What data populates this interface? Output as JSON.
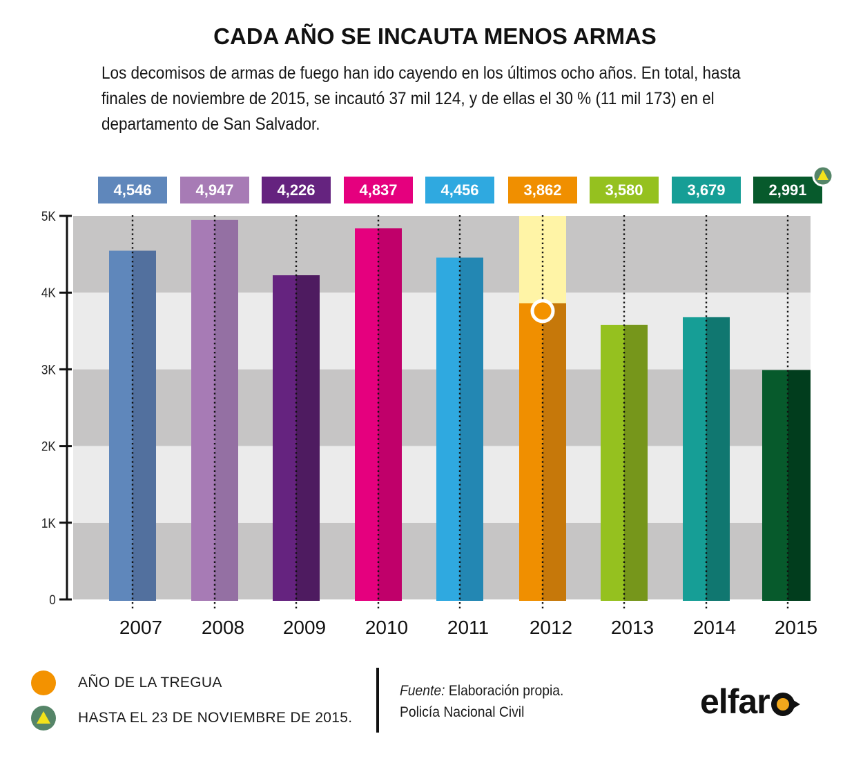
{
  "header": {
    "title": "CADA AÑO SE INCAUTA MENOS ARMAS",
    "subtitle": "Los decomisos de armas de fuego han ido cayendo en los últimos ocho años. En total, hasta finales de noviembre de 2015, se incautó 37 mil 124, y de ellas el 30 % (11 mil 173) en el departamento de San Salvador."
  },
  "chart_data": {
    "type": "bar",
    "title": "CADA AÑO SE INCAUTA MENOS ARMAS",
    "xlabel": "",
    "ylabel": "",
    "categories": [
      "2007",
      "2008",
      "2009",
      "2010",
      "2011",
      "2012",
      "2013",
      "2014",
      "2015"
    ],
    "values": [
      4546,
      4947,
      4226,
      4837,
      4456,
      3862,
      3580,
      3679,
      2991
    ],
    "value_labels": [
      "4,546",
      "4,947",
      "4,226",
      "4,837",
      "4,456",
      "3,862",
      "3,580",
      "3,679",
      "2,991"
    ],
    "colors": [
      "#5f87bb",
      "#a77bb5",
      "#65237f",
      "#e5007e",
      "#2fa9e0",
      "#f08f00",
      "#95c11f",
      "#169e96",
      "#075a2c"
    ],
    "shade_colors": [
      "#52709e",
      "#9470a3",
      "#4e1b60",
      "#c0006a",
      "#2387b3",
      "#c6780a",
      "#76961b",
      "#107770",
      "#013d1d"
    ],
    "ylim": [
      0,
      5000
    ],
    "yticks": [
      0,
      1000,
      2000,
      3000,
      4000,
      5000
    ],
    "ytick_labels": [
      "0",
      "1K",
      "2K",
      "3K",
      "4K",
      "5K"
    ],
    "grid": "alternating horizontal bands",
    "highlight": {
      "category": "2012",
      "marker": "orange-circle",
      "meaning": "AÑO DE LA TREGUA"
    },
    "partial": {
      "category": "2015",
      "marker": "yellow-triangle",
      "meaning": "HASTA EL 23 DE NOVIEMBRE DE 2015."
    },
    "band_colors": {
      "dark": "#c6c5c5",
      "light": "#ebebeb",
      "highlight": "#fff4a6"
    }
  },
  "legend": {
    "items": [
      {
        "label": "AÑO DE LA TREGUA",
        "color": "#f39200",
        "icon": "orange-circle-icon"
      },
      {
        "label": "HASTA EL 23 DE NOVIEMBRE DE 2015.",
        "color": "#558568",
        "icon": "yellow-triangle-icon"
      }
    ]
  },
  "source": {
    "prefix": "Fuente:",
    "line1": " Elaboración propia.",
    "line2": "Policía Nacional Civil"
  },
  "logo": {
    "text": "elfar",
    "accent": "#f2a81c"
  }
}
